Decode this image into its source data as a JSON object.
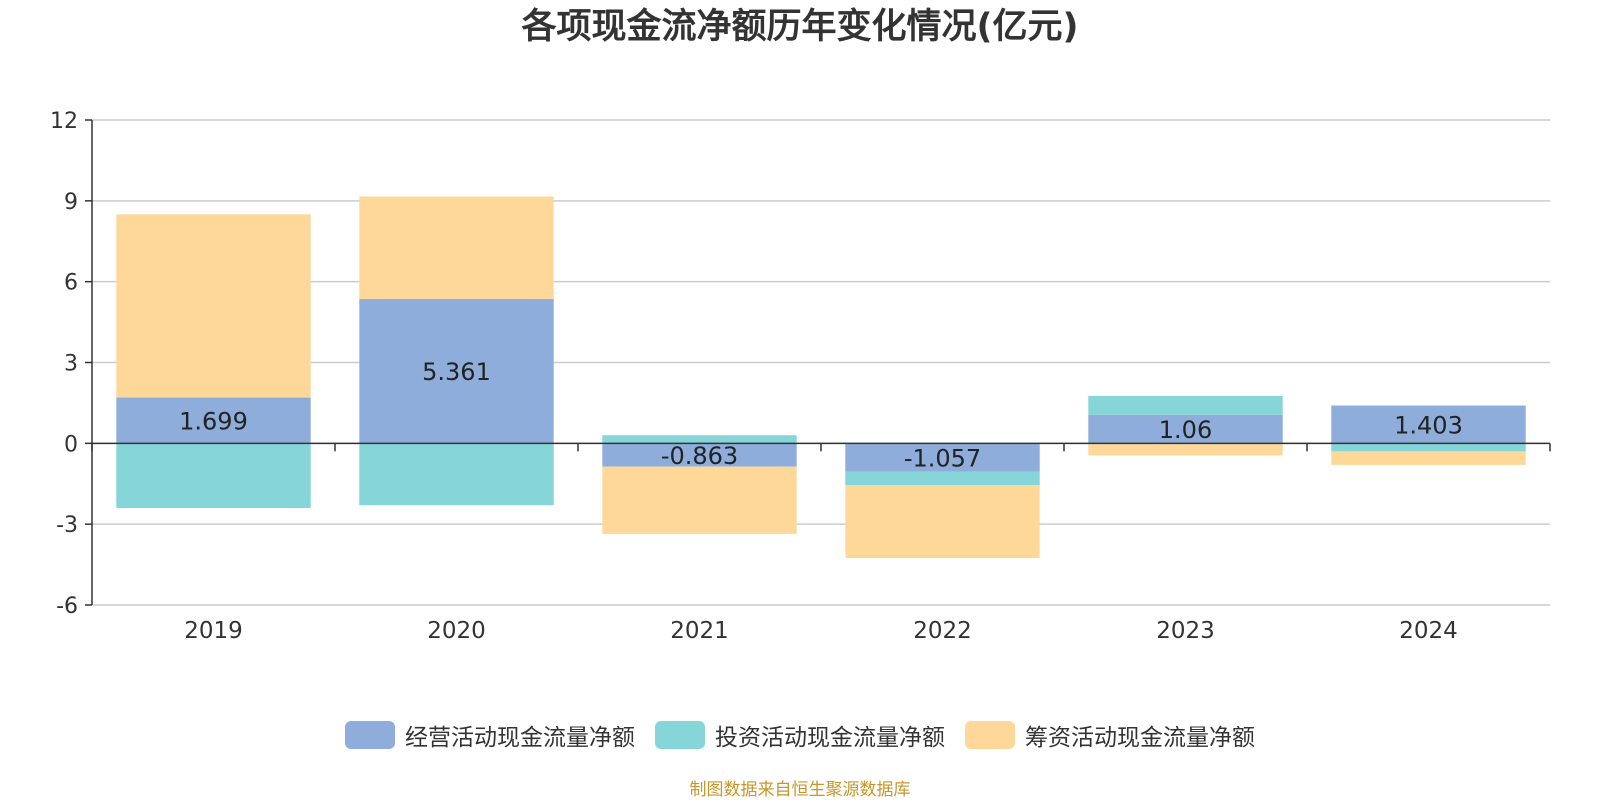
{
  "chart_data": {
    "type": "bar",
    "stacked": true,
    "title": "各项现金流净额历年变化情况(亿元)",
    "categories": [
      "2019",
      "2020",
      "2021",
      "2022",
      "2023",
      "2024"
    ],
    "ylim": [
      -6,
      12
    ],
    "yticks": [
      "12",
      "9",
      "6",
      "3",
      "0",
      "-3",
      "-6"
    ],
    "grid": true,
    "legend_position": "bottom",
    "series": [
      {
        "name": "经营活动现金流量净额",
        "color": "#8eaddb",
        "values": [
          1.699,
          5.361,
          -0.863,
          -1.057,
          1.06,
          1.403
        ],
        "labels": [
          "1.699",
          "5.361",
          "-0.863",
          "-1.057",
          "1.06",
          "1.403"
        ]
      },
      {
        "name": "投资活动现金流量净额",
        "color": "#86d5d8",
        "values": [
          -2.4,
          -2.3,
          0.3,
          -0.5,
          0.7,
          -0.3
        ],
        "labels": []
      },
      {
        "name": "筹资活动现金流量净额",
        "color": "#fed899",
        "values": [
          6.8,
          3.8,
          -2.5,
          -2.7,
          -0.45,
          -0.5
        ],
        "labels": []
      }
    ]
  },
  "source_note": "制图数据来自恒生聚源数据库"
}
